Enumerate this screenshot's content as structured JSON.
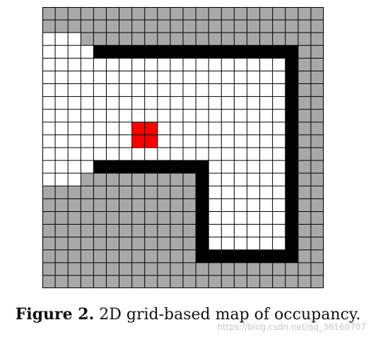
{
  "grid": {
    "cols": 22,
    "rows": 22,
    "colors": {
      "unknown": "#a8a8a8",
      "free": "#ffffff",
      "occupied": "#000000",
      "robot": "#ff0000",
      "grid_line": "#000000"
    },
    "rows_data": [
      "UUUUUUUUUUUUUUUUUUUUUU",
      "UUUUUUUUUUUUUUUUUUUUUU",
      "FFFUUUUUUUUUUUUUUUUUUU",
      "FFFFOOOOOOOOOOOOOOOOUU",
      "FFFFFFFFFFFFFFFFFFFOUU",
      "FFFFFFFFFFFFFFFFFFFOUU",
      "FFFFFFFFFFFFFFFFFFFOUU",
      "FFFFFFFFFFFFFFFFFFFOUU",
      "FFFFFFFFFFFFFFFFFFFOUU",
      "FFFFFFFFFFFFFFFFFFFOUU",
      "FFFFFFFFFFFFFFFFFFFOUU",
      "FFFFFFFFFFFFFFFFFFFOUU",
      "FFFFOOOOOOOOOFFFFFFOUU",
      "FFFUUUUUUUUUOFFFFFFOUU",
      "UUUUUUUUUUUUOFFFFFFOUU",
      "UUUUUUUUUUUUOFFFFFFOUU",
      "UUUUUUUUUUUUOFFFFFFOUU",
      "UUUUUUUUUUUUOFFFFFFOUU",
      "UUUUUUUUUUUUOFFFFFFOUU",
      "UUUUUUUUUUUUOOOOOOOOUU",
      "UUUUUUUUUUUUUUUUUUUUUU",
      "UUUUUUUUUUUUUUUUUUUUUU"
    ],
    "robot_cells": [
      [
        9,
        7
      ],
      [
        9,
        8
      ],
      [
        10,
        7
      ],
      [
        10,
        8
      ]
    ]
  },
  "caption": {
    "lead": "Figure 2.",
    "text": " 2D grid-based map of occupancy."
  },
  "watermark": "https://blog.csdn.net/qq_36160707"
}
